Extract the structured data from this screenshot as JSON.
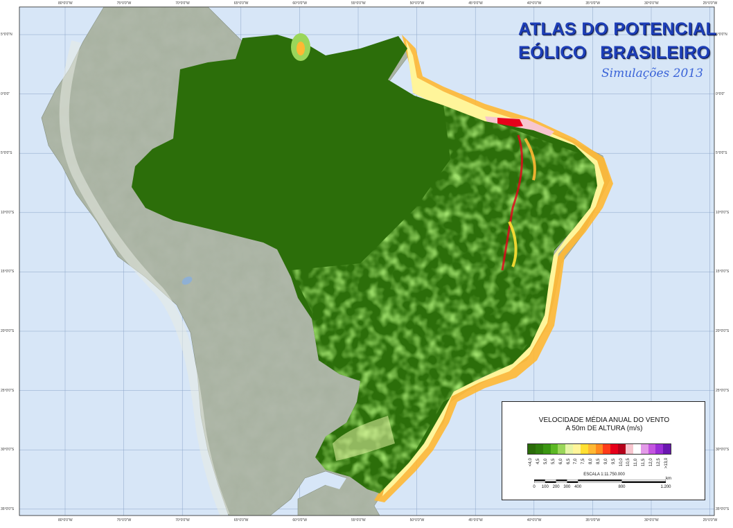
{
  "title": {
    "line1": "ATLAS DO POTENCIAL",
    "line2": "EÓLICO   BRASILEIRO",
    "subtitle": "Simulações 2013"
  },
  "grid": {
    "longitudes": [
      "80°0'0\"W",
      "75°0'0\"W",
      "70°0'0\"W",
      "65°0'0\"W",
      "60°0'0\"W",
      "55°0'0\"W",
      "50°0'0\"W",
      "45°0'0\"W",
      "40°0'0\"W",
      "35°0'0\"W",
      "30°0'0\"W",
      "25°0'0\"W"
    ],
    "latitudes": [
      "5°0'0\"N",
      "0°0'0\"",
      "5°0'0\"S",
      "10°0'0\"S",
      "15°0'0\"S",
      "20°0'0\"S",
      "25°0'0\"S",
      "30°0'0\"S",
      "35°0'0\"S"
    ]
  },
  "colors": {
    "ocean": "#d7e6f7",
    "land_relief": "#a9b4a3",
    "low_wind": "#2c6e0a",
    "mid_wind": "#3fa514",
    "title_blue": "#1e3fb8"
  },
  "legend": {
    "title_line1": "VELOCIDADE MÉDIA ANUAL DO VENTO",
    "title_line2": "A 50m DE ALTURA (m/s)",
    "classes": [
      {
        "label": "<4,0",
        "color": "#2a6b09"
      },
      {
        "label": "4,5",
        "color": "#2f7d0c"
      },
      {
        "label": "5,0",
        "color": "#3b9612"
      },
      {
        "label": "5,5",
        "color": "#5cb824"
      },
      {
        "label": "6,0",
        "color": "#9ad65a"
      },
      {
        "label": "6,5",
        "color": "#e6f5a6"
      },
      {
        "label": "7,0",
        "color": "#fff59a"
      },
      {
        "label": "7,5",
        "color": "#ffe033"
      },
      {
        "label": "8,0",
        "color": "#ffb833"
      },
      {
        "label": "8,5",
        "color": "#ff8a1f"
      },
      {
        "label": "9,0",
        "color": "#ff3b1a"
      },
      {
        "label": "9,5",
        "color": "#e6001a"
      },
      {
        "label": "10,0",
        "color": "#b5001a"
      },
      {
        "label": "10,5",
        "color": "#f7c6cf"
      },
      {
        "label": "11,0",
        "color": "#ffffff"
      },
      {
        "label": "11,5",
        "color": "#e39ae8"
      },
      {
        "label": "12,0",
        "color": "#c455e0"
      },
      {
        "label": "12,5",
        "color": "#9b2ed6"
      },
      {
        "label": ">13,0",
        "color": "#6a17b0"
      }
    ],
    "scale_title": "ESCALA 1:11.750.000",
    "scale_numbers": [
      "0",
      "100",
      "200",
      "300",
      "400",
      "800",
      "1.200"
    ],
    "scale_unit": "km"
  }
}
